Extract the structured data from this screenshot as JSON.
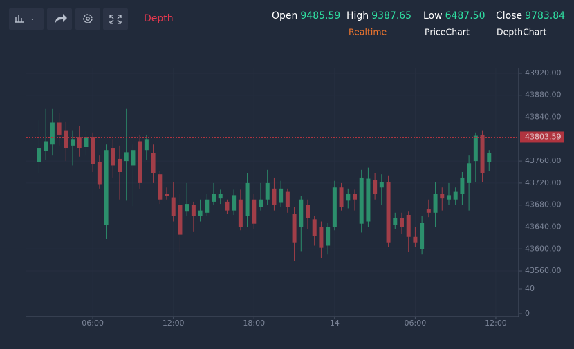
{
  "header": {
    "depth": "Depth",
    "stats": [
      {
        "name": "Open",
        "value": "9485.59"
      },
      {
        "name": "High",
        "value": "9387.65"
      },
      {
        "name": "Low",
        "value": "6487.50"
      },
      {
        "name": "Close",
        "value": "9783.84"
      }
    ],
    "tabs": [
      "Realtime",
      "PriceChart",
      "DepthChart"
    ]
  },
  "chart_data": {
    "type": "candlestick",
    "x": [
      2,
      2.5,
      3,
      3.5,
      4,
      4.5,
      5,
      5.5,
      6,
      6.5,
      7,
      7.5,
      8,
      8.5,
      9,
      9.5,
      10,
      10.5,
      11,
      11.5,
      12,
      12.5,
      13,
      13.5,
      14,
      14.5,
      15,
      15.5,
      16,
      16.5,
      17,
      17.5,
      18,
      18.5,
      19,
      19.5,
      20,
      20.5,
      21,
      21.5,
      22,
      22.5,
      23,
      23.5,
      24,
      24.5,
      25,
      25.5,
      26,
      26.5,
      27,
      27.5,
      28,
      28.5,
      29,
      29.5,
      30,
      30.5,
      31,
      31.5,
      32,
      32.5,
      33,
      33.5,
      34,
      34.5,
      35,
      35.5
    ],
    "open": [
      43758,
      43778,
      43790,
      43830,
      43816,
      43788,
      43804,
      43786,
      43804,
      43758,
      43644,
      43784,
      43764,
      43760,
      43752,
      43796,
      43780,
      43774,
      43736,
      43700,
      43694,
      43680,
      43668,
      43680,
      43660,
      43666,
      43686,
      43692,
      43686,
      43670,
      43690,
      43660,
      43690,
      43676,
      43690,
      43710,
      43684,
      43704,
      43664,
      43640,
      43680,
      43654,
      43640,
      43606,
      43640,
      43712,
      43688,
      43700,
      43646,
      43650,
      43726,
      43712,
      43722,
      43644,
      43656,
      43662,
      43622,
      43600,
      43672,
      43666,
      43700,
      43690,
      43690,
      43700,
      43720,
      43760,
      43808,
      43758
    ],
    "high": [
      43834,
      43856,
      43856,
      43848,
      43832,
      43816,
      43824,
      43814,
      43812,
      43770,
      43790,
      43800,
      43788,
      43856,
      43790,
      43808,
      43808,
      43790,
      43742,
      43712,
      43722,
      43700,
      43720,
      43686,
      43690,
      43700,
      43720,
      43708,
      43690,
      43708,
      43708,
      43738,
      43700,
      43720,
      43744,
      43730,
      43724,
      43710,
      43676,
      43696,
      43690,
      43660,
      43650,
      43648,
      43724,
      43720,
      43710,
      43708,
      43744,
      43748,
      43738,
      43736,
      43734,
      43666,
      43666,
      43668,
      43640,
      43660,
      43690,
      43722,
      43712,
      43720,
      43712,
      43740,
      43770,
      43812,
      43816,
      43780
    ],
    "low": [
      43738,
      43762,
      43770,
      43788,
      43760,
      43752,
      43768,
      43770,
      43740,
      43710,
      43618,
      43730,
      43690,
      43688,
      43678,
      43710,
      43762,
      43720,
      43682,
      43690,
      43650,
      43594,
      43660,
      43632,
      43650,
      43660,
      43680,
      43682,
      43664,
      43662,
      43634,
      43640,
      43636,
      43670,
      43680,
      43670,
      43676,
      43666,
      43578,
      43596,
      43636,
      43606,
      43584,
      43590,
      43634,
      43670,
      43674,
      43670,
      43630,
      43640,
      43690,
      43680,
      43604,
      43636,
      43628,
      43594,
      43604,
      43590,
      43658,
      43640,
      43670,
      43680,
      43680,
      43680,
      43670,
      43722,
      43722,
      43742
    ],
    "close": [
      43784,
      43796,
      43830,
      43808,
      43784,
      43800,
      43784,
      43804,
      43754,
      43718,
      43780,
      43752,
      43740,
      43776,
      43780,
      43720,
      43800,
      43738,
      43690,
      43696,
      43660,
      43626,
      43682,
      43660,
      43670,
      43690,
      43700,
      43700,
      43670,
      43698,
      43640,
      43720,
      43646,
      43690,
      43720,
      43680,
      43710,
      43676,
      43612,
      43690,
      43656,
      43624,
      43602,
      43640,
      43712,
      43676,
      43700,
      43690,
      43730,
      43728,
      43700,
      43722,
      43612,
      43656,
      43640,
      43622,
      43612,
      43648,
      43666,
      43700,
      43692,
      43698,
      43704,
      43730,
      43756,
      43806,
      43738,
      43774
    ],
    "up_color": "#2c8f6c",
    "down_color": "#a13e48",
    "xlim": [
      1.05,
      37.7
    ],
    "xticks": [
      {
        "value": 6,
        "label": "06:00"
      },
      {
        "value": 12,
        "label": "12:00"
      },
      {
        "value": 18,
        "label": "18:00"
      },
      {
        "value": 24,
        "label": "14"
      },
      {
        "value": 30,
        "label": "06:00"
      },
      {
        "value": 36,
        "label": "12:00"
      }
    ],
    "ylim": [
      43550,
      43930
    ],
    "yticks": [
      {
        "value": 43560,
        "label": "43560.00"
      },
      {
        "value": 43600,
        "label": "43600.00"
      },
      {
        "value": 43640,
        "label": "43640.00"
      },
      {
        "value": 43680,
        "label": "43680.00"
      },
      {
        "value": 43720,
        "label": "43720.00"
      },
      {
        "value": 43760,
        "label": "43760.00"
      },
      {
        "value": 43840,
        "label": "43840.00"
      },
      {
        "value": 43880,
        "label": "43880.00"
      },
      {
        "value": 43920,
        "label": "43920.00"
      }
    ],
    "y2lim": [
      0,
      50
    ],
    "y2ticks": [
      0,
      40
    ],
    "last_price": 43803.59,
    "last_price_color": "#b0343f",
    "grid": true
  }
}
